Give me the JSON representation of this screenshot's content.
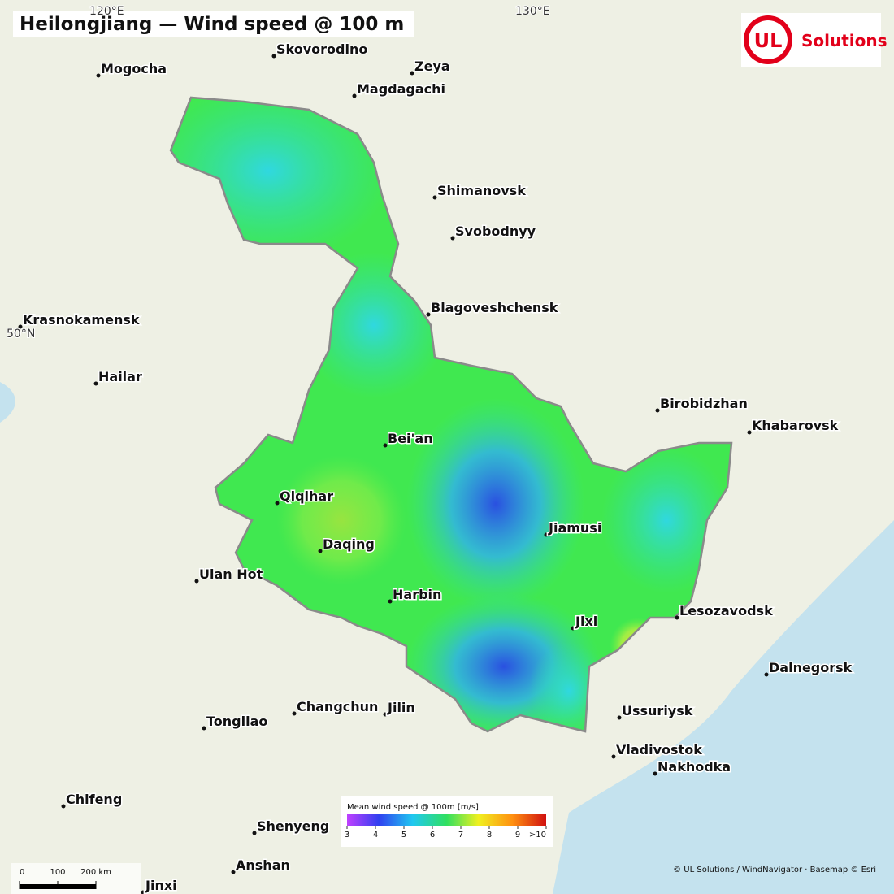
{
  "title": "Heilongjiang — Wind speed @ 100 m",
  "logo": {
    "mark": "UL",
    "text": "Solutions"
  },
  "graticule": [
    "120°E",
    "130°E",
    "50°N"
  ],
  "cities": [
    "Mogocha",
    "Skovorodino",
    "Zeya",
    "Magdagachi",
    "Shimanovsk",
    "Svobodnyy",
    "Blagoveshchensk",
    "Krasnokamensk",
    "Hailar",
    "Birobidzhan",
    "Khabarovsk",
    "Bei'an",
    "Qiqihar",
    "Daqing",
    "Jiamusi",
    "Ulan Hot",
    "Harbin",
    "Lesozavodsk",
    "Jixi",
    "Dalnegorsk",
    "Changchun",
    "Jilin",
    "Ussuriysk",
    "Tongliao",
    "Vladivostok",
    "Nakhodka",
    "Chifeng",
    "Shenyeng",
    "Anshan",
    "Jinxi"
  ],
  "legend": {
    "title": "Mean wind speed @ 100m  [m/s]",
    "ticks": [
      3,
      4,
      5,
      6,
      7,
      8,
      9,
      {
        "value": 10,
        "label": ">10"
      }
    ]
  },
  "scale_bar": {
    "ticks": [
      0,
      100,
      {
        "value": 200,
        "label": "200 km"
      }
    ]
  },
  "attribution": "© UL Solutions / WindNavigator · Basemap © Esri"
}
